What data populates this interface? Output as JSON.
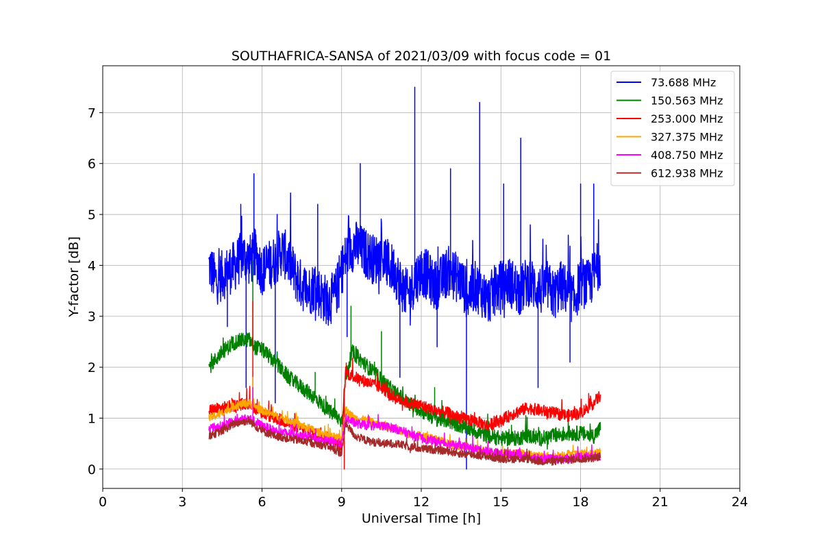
{
  "chart_data": {
    "type": "line",
    "title": "SOUTHAFRICA-SANSA of 2021/03/09 with focus code = 01",
    "xlabel": "Universal Time [h]",
    "ylabel": "Y-factor [dB]",
    "xlim": [
      0,
      24
    ],
    "ylim": [
      -0.38,
      7.92
    ],
    "xticks": [
      0,
      3,
      6,
      9,
      12,
      15,
      18,
      21,
      24
    ],
    "yticks": [
      0,
      1,
      2,
      3,
      4,
      5,
      6,
      7
    ],
    "grid": true,
    "legend_position": "top-right",
    "series": [
      {
        "name": " 73.688 MHz",
        "color": "#0000ff",
        "x": [
          4.0,
          4.25,
          4.5,
          4.75,
          5.0,
          5.25,
          5.5,
          5.75,
          6.0,
          6.25,
          6.5,
          6.75,
          7.0,
          7.25,
          7.5,
          7.75,
          8.0,
          8.25,
          8.5,
          8.75,
          9.0,
          9.25,
          9.5,
          9.75,
          10.0,
          10.25,
          10.5,
          10.75,
          11.0,
          11.25,
          11.5,
          11.75,
          12.0,
          12.25,
          12.5,
          12.75,
          13.0,
          13.25,
          13.5,
          13.75,
          14.0,
          14.25,
          14.5,
          14.75,
          15.0,
          15.25,
          15.5,
          15.75,
          16.0,
          16.25,
          16.5,
          16.75,
          17.0,
          17.25,
          17.5,
          17.75,
          18.0,
          18.25,
          18.5,
          18.75
        ],
        "y": [
          4.0,
          3.7,
          3.8,
          3.9,
          4.0,
          4.2,
          4.1,
          4.2,
          3.9,
          4.0,
          4.1,
          4.3,
          4.1,
          3.8,
          3.6,
          3.5,
          3.6,
          3.4,
          3.3,
          3.4,
          3.9,
          4.3,
          4.4,
          4.3,
          4.2,
          4.1,
          4.2,
          4.0,
          3.9,
          3.6,
          3.4,
          3.7,
          3.9,
          3.8,
          3.6,
          3.7,
          3.9,
          3.8,
          3.7,
          3.4,
          3.6,
          3.5,
          3.3,
          3.5,
          3.6,
          3.7,
          3.6,
          3.5,
          3.7,
          3.6,
          3.5,
          3.6,
          3.4,
          3.6,
          3.5,
          3.3,
          3.7,
          3.6,
          3.8,
          4.1
        ],
        "spikes": [
          [
            4.7,
            2.8
          ],
          [
            5.2,
            5.2
          ],
          [
            5.4,
            1.6
          ],
          [
            5.7,
            5.8
          ],
          [
            6.5,
            1.3
          ],
          [
            8.1,
            5.2
          ],
          [
            9.2,
            2.6
          ],
          [
            9.7,
            6.0
          ],
          [
            11.2,
            1.8
          ],
          [
            11.75,
            7.5
          ],
          [
            12.6,
            2.4
          ],
          [
            13.1,
            5.9
          ],
          [
            13.7,
            0.0
          ],
          [
            14.2,
            7.2
          ],
          [
            15.1,
            5.6
          ],
          [
            15.75,
            6.5
          ],
          [
            16.4,
            1.6
          ],
          [
            17.6,
            2.1
          ],
          [
            18.0,
            5.6
          ],
          [
            18.5,
            5.6
          ]
        ],
        "noise": 0.5
      },
      {
        "name": "150.563 MHz",
        "color": "#008000",
        "x": [
          4.0,
          4.5,
          5.0,
          5.5,
          5.7,
          6.0,
          6.5,
          7.0,
          7.5,
          8.0,
          8.5,
          9.0,
          9.15,
          9.4,
          10.0,
          10.5,
          11.0,
          11.5,
          12.0,
          12.5,
          13.0,
          13.5,
          14.0,
          14.5,
          15.0,
          15.5,
          16.0,
          16.5,
          17.0,
          17.5,
          18.0,
          18.5,
          18.75
        ],
        "y": [
          2.0,
          2.3,
          2.5,
          2.55,
          2.4,
          2.35,
          2.1,
          1.8,
          1.6,
          1.4,
          1.15,
          0.95,
          1.8,
          2.3,
          2.0,
          1.75,
          1.5,
          1.3,
          1.15,
          1.0,
          0.95,
          0.85,
          0.75,
          0.65,
          0.6,
          0.6,
          0.65,
          0.6,
          0.65,
          0.7,
          0.7,
          0.65,
          0.8
        ],
        "spikes": [
          [
            5.65,
            4.1
          ],
          [
            8.0,
            1.9
          ],
          [
            9.35,
            3.2
          ],
          [
            10.5,
            2.7
          ],
          [
            12.5,
            1.6
          ]
        ],
        "noise": 0.15
      },
      {
        "name": "253.000 MHz",
        "color": "#ff0000",
        "x": [
          4.0,
          4.5,
          5.0,
          5.5,
          6.0,
          6.5,
          7.0,
          7.5,
          8.0,
          8.5,
          9.0,
          9.15,
          9.5,
          10.0,
          10.5,
          11.0,
          11.5,
          12.0,
          12.5,
          13.0,
          13.5,
          14.0,
          14.5,
          15.0,
          15.5,
          16.0,
          16.5,
          17.0,
          17.5,
          18.0,
          18.5,
          18.75
        ],
        "y": [
          1.15,
          1.2,
          1.25,
          1.3,
          1.1,
          1.0,
          0.9,
          0.8,
          0.7,
          0.6,
          0.45,
          1.9,
          1.8,
          1.7,
          1.6,
          1.4,
          1.3,
          1.25,
          1.15,
          1.1,
          1.0,
          0.95,
          0.85,
          0.95,
          1.1,
          1.2,
          1.15,
          1.1,
          1.05,
          1.1,
          1.3,
          1.45
        ],
        "spikes": [
          [
            5.65,
            3.3
          ],
          [
            9.1,
            0.0
          ]
        ],
        "noise": 0.12
      },
      {
        "name": "327.375 MHz",
        "color": "#ffa500",
        "x": [
          4.0,
          4.5,
          5.0,
          5.5,
          6.0,
          6.5,
          7.0,
          7.5,
          8.0,
          8.5,
          9.0,
          9.15,
          9.5,
          10.0,
          10.5,
          11.0,
          11.5,
          12.0,
          12.5,
          13.0,
          13.5,
          14.0,
          14.5,
          15.0,
          15.5,
          16.0,
          16.5,
          17.0,
          17.5,
          18.0,
          18.5,
          18.75
        ],
        "y": [
          1.0,
          1.1,
          1.25,
          1.3,
          1.15,
          1.05,
          0.95,
          0.85,
          0.75,
          0.65,
          0.6,
          1.15,
          1.0,
          0.95,
          0.85,
          0.8,
          0.7,
          0.65,
          0.6,
          0.5,
          0.45,
          0.4,
          0.35,
          0.3,
          0.3,
          0.3,
          0.25,
          0.25,
          0.3,
          0.3,
          0.3,
          0.35
        ],
        "spikes": [
          [
            5.65,
            1.8
          ]
        ],
        "noise": 0.08
      },
      {
        "name": "408.750 MHz",
        "color": "#ff00ff",
        "x": [
          4.0,
          4.5,
          5.0,
          5.5,
          6.0,
          6.5,
          7.0,
          7.5,
          8.0,
          8.5,
          9.0,
          9.15,
          9.5,
          10.0,
          10.5,
          11.0,
          11.5,
          12.0,
          12.5,
          13.0,
          13.5,
          14.0,
          14.5,
          15.0,
          15.5,
          16.0,
          16.5,
          17.0,
          17.5,
          18.0,
          18.5,
          18.75
        ],
        "y": [
          0.8,
          0.85,
          0.95,
          1.0,
          0.85,
          0.75,
          0.7,
          0.65,
          0.6,
          0.55,
          0.5,
          1.0,
          0.9,
          0.85,
          0.85,
          0.8,
          0.7,
          0.6,
          0.55,
          0.5,
          0.45,
          0.4,
          0.35,
          0.3,
          0.3,
          0.25,
          0.2,
          0.2,
          0.2,
          0.25,
          0.25,
          0.25
        ],
        "spikes": [
          [
            5.65,
            1.6
          ]
        ],
        "noise": 0.09
      },
      {
        "name": "612.938 MHz",
        "color": "#a52a2a",
        "x": [
          4.0,
          4.5,
          5.0,
          5.5,
          6.0,
          6.5,
          7.0,
          7.5,
          8.0,
          8.5,
          9.0,
          9.15,
          9.5,
          10.0,
          10.5,
          11.0,
          11.5,
          12.0,
          12.5,
          13.0,
          13.5,
          14.0,
          14.5,
          15.0,
          15.5,
          16.0,
          16.5,
          17.0,
          17.5,
          18.0,
          18.5,
          18.75
        ],
        "y": [
          0.65,
          0.75,
          0.9,
          0.95,
          0.75,
          0.65,
          0.6,
          0.55,
          0.5,
          0.45,
          0.3,
          0.9,
          0.65,
          0.55,
          0.5,
          0.5,
          0.45,
          0.4,
          0.38,
          0.35,
          0.3,
          0.28,
          0.25,
          0.2,
          0.2,
          0.2,
          0.15,
          0.15,
          0.18,
          0.2,
          0.22,
          0.25
        ],
        "spikes": [],
        "noise": 0.08
      }
    ]
  }
}
